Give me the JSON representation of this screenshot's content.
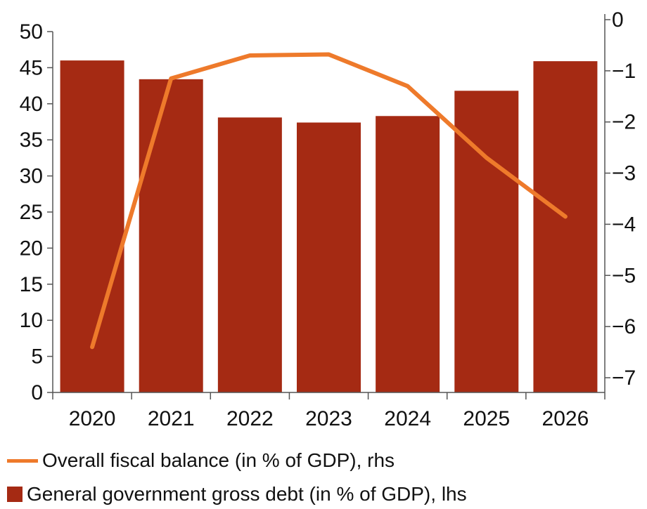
{
  "chart_data": {
    "type": "bar",
    "categories": [
      "2020",
      "2021",
      "2022",
      "2023",
      "2024",
      "2025",
      "2026"
    ],
    "series": [
      {
        "name": "General government gross debt (in % of GDP), lhs",
        "type": "bar",
        "axis": "left",
        "color": "#A52A13",
        "values": [
          46.0,
          43.4,
          38.1,
          37.4,
          38.3,
          41.8,
          45.9
        ]
      },
      {
        "name": "Overall fiscal balance (in % of GDP), rhs",
        "type": "line",
        "axis": "right",
        "color": "#EE7A2B",
        "values": [
          -6.4,
          -1.15,
          -0.7,
          -0.68,
          -1.3,
          -2.7,
          -3.85
        ]
      }
    ],
    "y_left": {
      "ylim": [
        0,
        50
      ],
      "ticks": [
        "0",
        "5",
        "10",
        "15",
        "20",
        "25",
        "30",
        "35",
        "40",
        "45",
        "50"
      ]
    },
    "y_right": {
      "ylim": [
        -8,
        0
      ],
      "ticks": [
        "0",
        "-1",
        "-2",
        "-3",
        "-4",
        "-5",
        "-6",
        "-7"
      ]
    },
    "grid": false,
    "legend_position": "bottom"
  }
}
